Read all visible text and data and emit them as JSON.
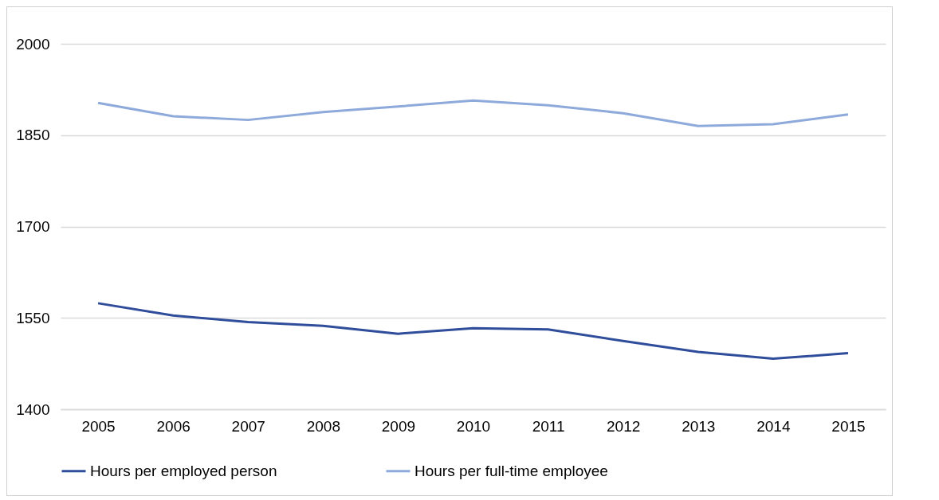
{
  "chart_data": {
    "type": "line",
    "categories": [
      "2005",
      "2006",
      "2007",
      "2008",
      "2009",
      "2010",
      "2011",
      "2012",
      "2013",
      "2014",
      "2015"
    ],
    "series": [
      {
        "name": "Hours per employed person",
        "color": "#2f4d9b",
        "values": [
          1574,
          1554,
          1543,
          1537,
          1524,
          1533,
          1531,
          1512,
          1494,
          1483,
          1492
        ]
      },
      {
        "name": "Hours per full-time employee",
        "color": "#8eaadb",
        "values": [
          1903,
          1881,
          1875,
          1888,
          1897,
          1907,
          1899,
          1886,
          1865,
          1868,
          1884
        ]
      }
    ],
    "ylim": [
      1400,
      2000
    ],
    "yticks": [
      1400,
      1550,
      1700,
      1850,
      2000
    ],
    "grid": "y",
    "legend": "bottom",
    "marker": "none",
    "line_style": "solid"
  }
}
